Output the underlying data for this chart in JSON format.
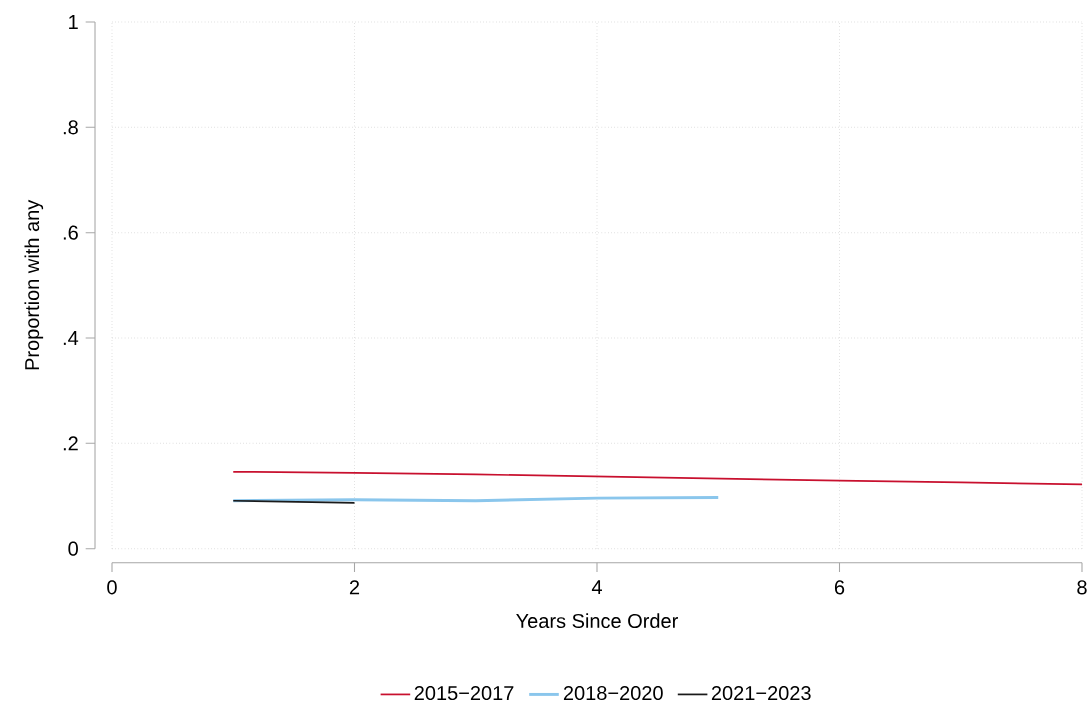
{
  "chart_data": {
    "type": "line",
    "xlabel": "Years Since Order",
    "ylabel": "Proportion with any",
    "xlim": [
      0,
      8
    ],
    "ylim": [
      0,
      1
    ],
    "xticks": [
      0,
      2,
      4,
      6,
      8
    ],
    "yticks": [
      0,
      {
        "value": 0.2,
        "label": ".2"
      },
      {
        "value": 0.4,
        "label": ".4"
      },
      {
        "value": 0.6,
        "label": ".6"
      },
      {
        "value": 0.8,
        "label": ".8"
      },
      1
    ],
    "grid": true,
    "legend": "bottom",
    "marker": "none",
    "line_style": "solid",
    "series": [
      {
        "name": "2015−2017",
        "color": "#c8102e",
        "x": [
          1,
          2,
          3,
          4,
          5,
          6,
          7,
          8
        ],
        "values": [
          0.146,
          0.144,
          0.141,
          0.137,
          0.133,
          0.129,
          0.126,
          0.122
        ]
      },
      {
        "name": "2018−2020",
        "color": "#8ac6ec",
        "x": [
          1,
          2,
          3,
          4,
          5
        ],
        "values": [
          0.091,
          0.093,
          0.091,
          0.096,
          0.097
        ]
      },
      {
        "name": "2021−2023",
        "color": "#1a1a1a",
        "x": [
          1,
          2
        ],
        "values": [
          0.091,
          0.087
        ]
      }
    ]
  }
}
